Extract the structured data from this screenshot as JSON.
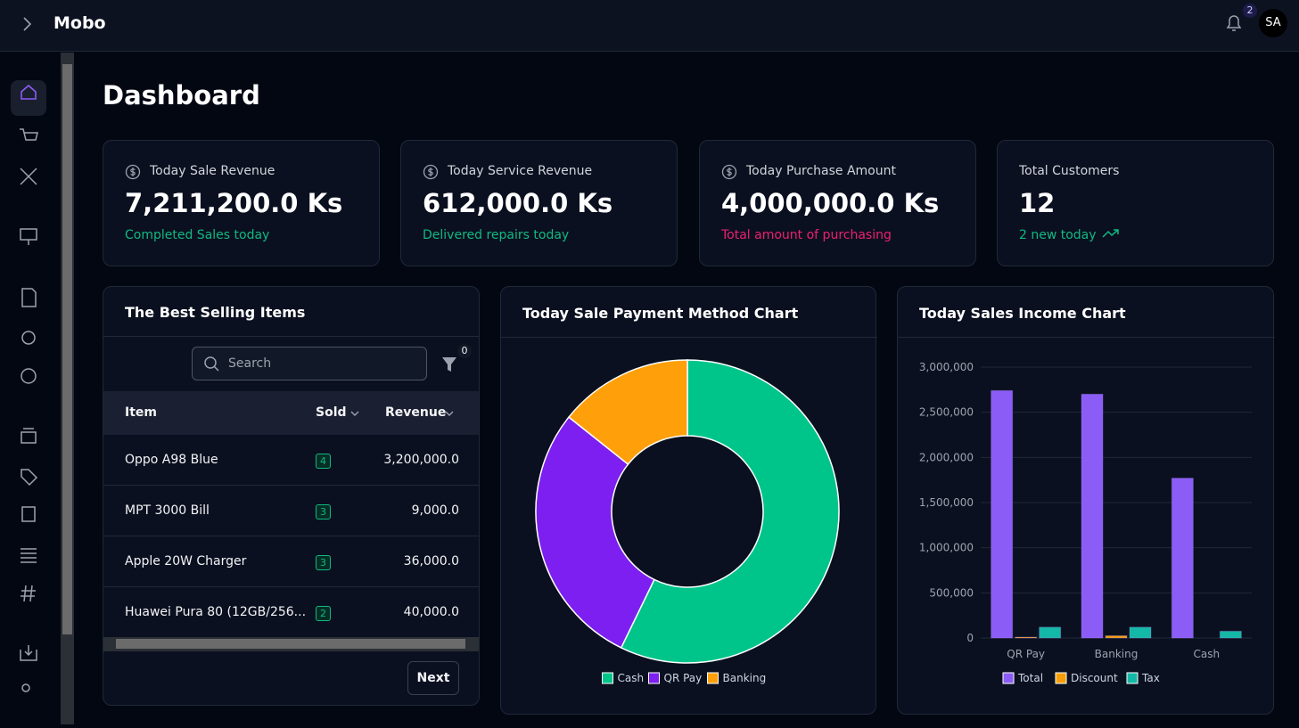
{
  "topbar": {
    "brand": "Mobo",
    "notification_count": "2",
    "avatar": "SA"
  },
  "page_title": "Dashboard",
  "stats": [
    {
      "label": "Today Sale Revenue",
      "value": "7,211,200.0 Ks",
      "note": "Completed Sales today"
    },
    {
      "label": "Today Service Revenue",
      "value": "612,000.0 Ks",
      "note": "Delivered repairs today"
    },
    {
      "label": "Today Purchase Amount",
      "value": "4,000,000.0 Ks",
      "note": "Total amount of purchasing"
    },
    {
      "label": "Total Customers",
      "value": "12",
      "note": "2 new today"
    }
  ],
  "best_selling": {
    "title": "The Best Selling Items",
    "search_placeholder": "Search",
    "filter_count": "0",
    "columns": [
      "Item",
      "Sold",
      "Revenue"
    ],
    "rows": [
      [
        "Oppo A98 Blue",
        "4",
        "3,200,000.0"
      ],
      [
        "MPT 3000 Bill",
        "3",
        "9,000.0"
      ],
      [
        "Apple 20W Charger",
        "3",
        "36,000.0"
      ],
      [
        "Huawei Pura 80 (12GB/256...",
        "2",
        "40,000.0"
      ]
    ],
    "next": "Next"
  },
  "payment_chart": {
    "type": "pie",
    "title": "Today Sale Payment Method Chart",
    "categories": [
      "Cash",
      "QR Pay",
      "Banking"
    ],
    "values": [
      57.2,
      28.5,
      14.3
    ],
    "colors": [
      "#00c58a",
      "#7c1ff0",
      "#ff9f0a"
    ]
  },
  "income_chart": {
    "type": "bar",
    "title": "Today Sales Income Chart",
    "categories": [
      "QR Pay",
      "Banking",
      "Cash"
    ],
    "series": [
      {
        "name": "Total",
        "color": "#8b5cf6",
        "values": [
          2740000,
          2700000,
          1770000
        ]
      },
      {
        "name": "Discount",
        "color": "#f59e0b",
        "values": [
          10000,
          25000,
          0
        ]
      },
      {
        "name": "Tax",
        "color": "#14b8a6",
        "values": [
          120000,
          120000,
          75000
        ]
      }
    ],
    "ylim": [
      0,
      3000000
    ],
    "yticks": [
      {
        "value": 0,
        "label": "0"
      },
      {
        "value": 500000,
        "label": "500,000"
      },
      {
        "value": 1000000,
        "label": "1,000,000"
      },
      {
        "value": 1500000,
        "label": "1,500,000"
      },
      {
        "value": 2000000,
        "label": "2,000,000"
      },
      {
        "value": 2500000,
        "label": "2,500,000"
      },
      {
        "value": 3000000,
        "label": "3,000,000"
      }
    ],
    "grid": true
  }
}
